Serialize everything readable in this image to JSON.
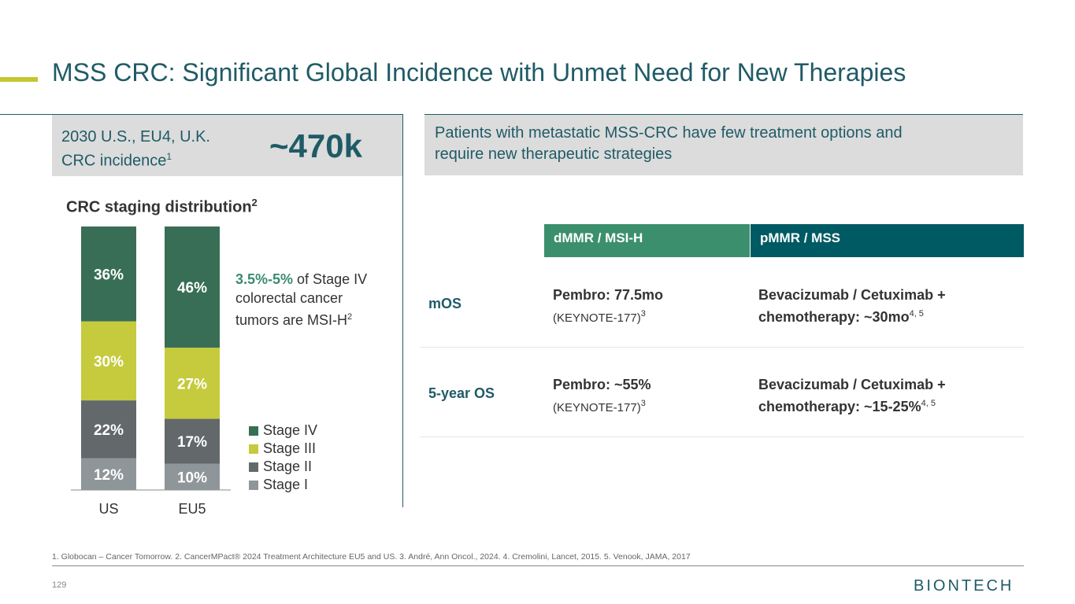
{
  "title": "MSS CRC: Significant Global Incidence with Unmet Need for New Therapies",
  "incidence": {
    "label_line1": "2030 U.S., EU4, U.K.",
    "label_line2": "CRC incidence",
    "label_sup": "1",
    "value": "~470k"
  },
  "staging": {
    "title": "CRC staging distribution",
    "title_sup": "2",
    "note_highlight": "3.5%-5%",
    "note_line1_rest": " of Stage IV",
    "note_line2": "colorectal cancer",
    "note_line3": "tumors are MSI-H",
    "note_sup": "2"
  },
  "chart_data": {
    "type": "bar",
    "stacked": true,
    "categories": [
      "US",
      "EU5"
    ],
    "series": [
      {
        "name": "Stage I",
        "values": [
          12,
          10
        ],
        "labels": [
          "12%",
          "10%"
        ]
      },
      {
        "name": "Stage II",
        "values": [
          22,
          17
        ],
        "labels": [
          "22%",
          "17%"
        ]
      },
      {
        "name": "Stage III",
        "values": [
          30,
          27
        ],
        "labels": [
          "30%",
          "27%"
        ]
      },
      {
        "name": "Stage IV",
        "values": [
          36,
          46
        ],
        "labels": [
          "36%",
          "46%"
        ]
      }
    ],
    "colors": {
      "Stage IV": "#386e55",
      "Stage III": "#c5cb3d",
      "Stage II": "#63686a",
      "Stage I": "#8f9699"
    },
    "legend_order": [
      "Stage IV",
      "Stage III",
      "Stage II",
      "Stage I"
    ],
    "ylim": [
      0,
      100
    ],
    "title": "CRC staging distribution"
  },
  "right": {
    "header_line1": "Patients with metastatic MSS-CRC have few treatment options and",
    "header_line2": "require new therapeutic strategies",
    "col1": "dMMR / MSI-H",
    "col2": "pMMR / MSS",
    "rows": [
      {
        "label": "mOS",
        "c1_main": "Pembro: 77.5mo",
        "c1_sub": "(KEYNOTE-177)",
        "c1_sup": "3",
        "c2_line1": "Bevacizumab / Cetuximab +",
        "c2_line2": "chemotherapy: ~30mo",
        "c2_sup": "4, 5"
      },
      {
        "label": "5-year OS",
        "c1_main": "Pembro: ~55%",
        "c1_sub": "(KEYNOTE-177)",
        "c1_sup": "3",
        "c2_line1": "Bevacizumab / Cetuximab +",
        "c2_line2": "chemotherapy: ~15-25%",
        "c2_sup": "4, 5"
      }
    ]
  },
  "footnote": "1. Globocan – Cancer Tomorrow.  2. CancerMPact® 2024 Treatment Architecture EU5 and US. 3. André, Ann Oncol., 2024. 4. Cremolini, Lancet, 2015. 5. Venook, JAMA, 2017",
  "page_number": "129",
  "logo_text": "BIONTECH",
  "colors": {
    "accent": "#c3c82e",
    "title": "#1f5b66",
    "dmmr": "#3b8f6d",
    "pmmr": "#005a63"
  }
}
